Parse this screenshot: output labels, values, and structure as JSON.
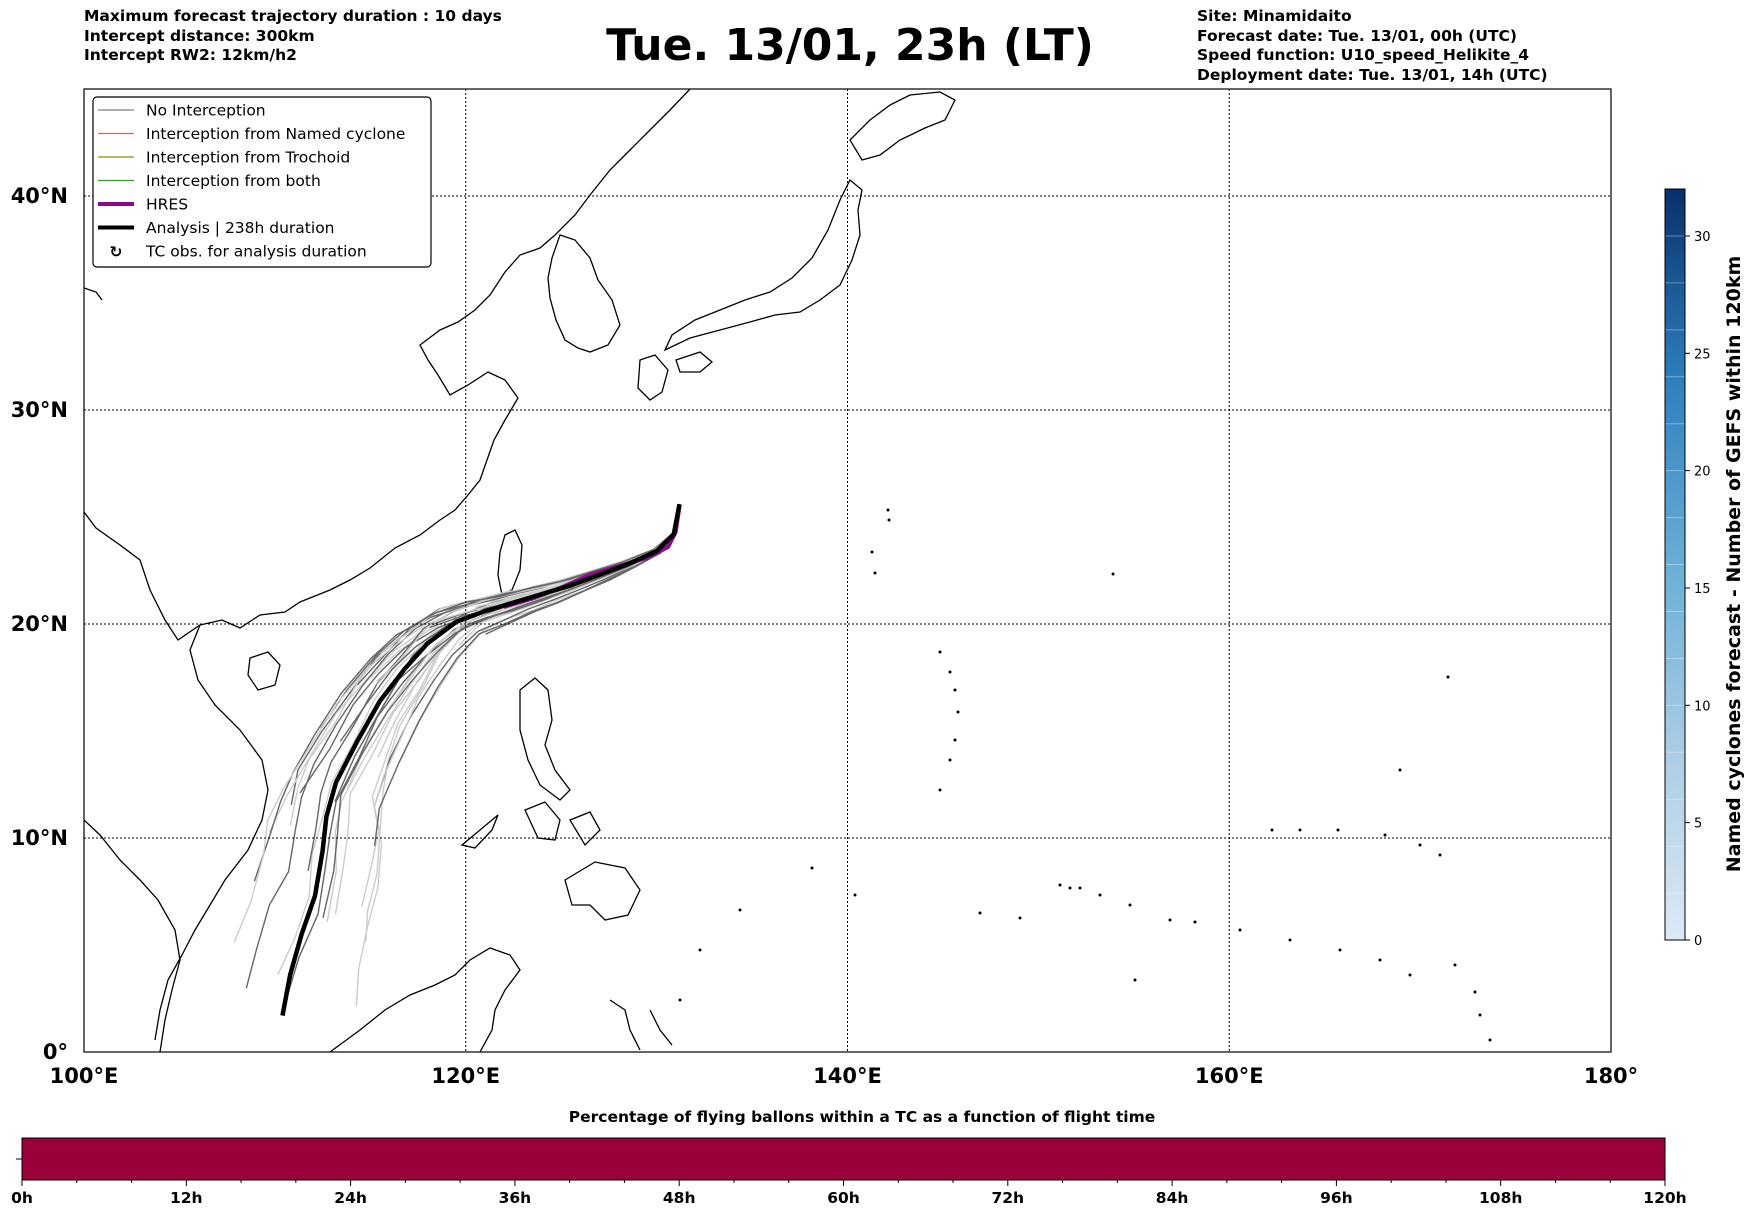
{
  "header_left": {
    "line1": "Maximum forecast trajectory duration : 10 days",
    "line2": "Intercept distance: 300km",
    "line3": "Intercept RW2: 12km/h2"
  },
  "header_title": "Tue. 13/01, 23h (LT)",
  "header_right": {
    "line1": "Site: Minamidaito",
    "line2": "Forecast date: Tue. 13/01, 00h (UTC)",
    "line3": "Speed function: U10_speed_Helikite_4",
    "line4": "Deployment date: Tue. 13/01, 14h (UTC)"
  },
  "legend": [
    {
      "label": "No Interception",
      "color": "#808080",
      "kind": "line"
    },
    {
      "label": "Interception from Named cyclone",
      "color": "#e8623a",
      "kind": "line"
    },
    {
      "label": "Interception from Trochoid",
      "color": "#8a8a10",
      "kind": "line"
    },
    {
      "label": "Interception from both",
      "color": "#3a9a3a",
      "kind": "line"
    },
    {
      "label": "HRES",
      "color": "#8b0a8b",
      "kind": "thick"
    },
    {
      "label": "Analysis | 238h duration",
      "color": "#000000",
      "kind": "thick"
    },
    {
      "label": "TC obs. for analysis duration",
      "color": "#000000",
      "kind": "symbol"
    }
  ],
  "colors": {
    "hres": "#8b0a8b",
    "analysis": "#000000",
    "ensemble_dark": "#666666",
    "ensemble_light": "#cccccc",
    "bottom_bar": "#9a003a"
  },
  "chart_data": [
    {
      "type": "line",
      "title": "Tue. 13/01, 23h (LT)",
      "x_axis": {
        "range": [
          100,
          180
        ],
        "ticks": [
          100,
          120,
          140,
          160,
          180
        ],
        "tick_labels": [
          "100°E",
          "120°E",
          "140°E",
          "160°E",
          "180°"
        ]
      },
      "y_axis": {
        "range": [
          0,
          45
        ],
        "ticks": [
          0,
          10,
          20,
          30,
          40
        ],
        "tick_labels": [
          "0°",
          "10°N",
          "20°N",
          "30°N",
          "40°N"
        ]
      },
      "grid": true,
      "legend_position": "top-left",
      "site": [
        131.2,
        25.8
      ],
      "series": [
        {
          "name": "HRES",
          "points": [
            [
              122,
              20.8
            ],
            [
              123.5,
              21.2
            ],
            [
              125,
              21.7
            ],
            [
              126.5,
              22.3
            ],
            [
              128,
              22.7
            ],
            [
              129.5,
              23.1
            ],
            [
              130.6,
              23.6
            ],
            [
              131.0,
              24.3
            ],
            [
              131.2,
              25.5
            ]
          ]
        },
        {
          "name": "Analysis | 238h duration",
          "points": [
            [
              131.2,
              25.6
            ],
            [
              130.9,
              24.2
            ],
            [
              130,
              23.4
            ],
            [
              128.5,
              22.8
            ],
            [
              127,
              22.3
            ],
            [
              125.5,
              21.8
            ],
            [
              124,
              21.4
            ],
            [
              122.5,
              21
            ],
            [
              121,
              20.6
            ],
            [
              119.5,
              20.1
            ],
            [
              118,
              19.1
            ],
            [
              116.8,
              17.9
            ],
            [
              115.5,
              16.4
            ],
            [
              114.3,
              14.5
            ],
            [
              113.2,
              12.6
            ],
            [
              112.7,
              11
            ],
            [
              112.5,
              9.4
            ],
            [
              112.1,
              7.3
            ],
            [
              111.4,
              5.5
            ],
            [
              110.8,
              3.6
            ],
            [
              110.4,
              1.7
            ]
          ]
        }
      ],
      "ensemble_no_interception_count": 40
    },
    {
      "type": "heatmap",
      "title": "Named cyclones forecast - Number of GEFS within 120km",
      "colorbar_range": [
        0,
        32
      ],
      "tick_values": [
        0,
        5,
        10,
        15,
        20,
        25,
        30
      ]
    },
    {
      "type": "heatmap",
      "title": "Percentage of flying ballons within a TC as a function of flight time",
      "x_ticks": [
        "0h",
        "12h",
        "24h",
        "36h",
        "48h",
        "60h",
        "72h",
        "84h",
        "96h",
        "108h",
        "120h"
      ],
      "fill_color": "#9a003a"
    }
  ]
}
